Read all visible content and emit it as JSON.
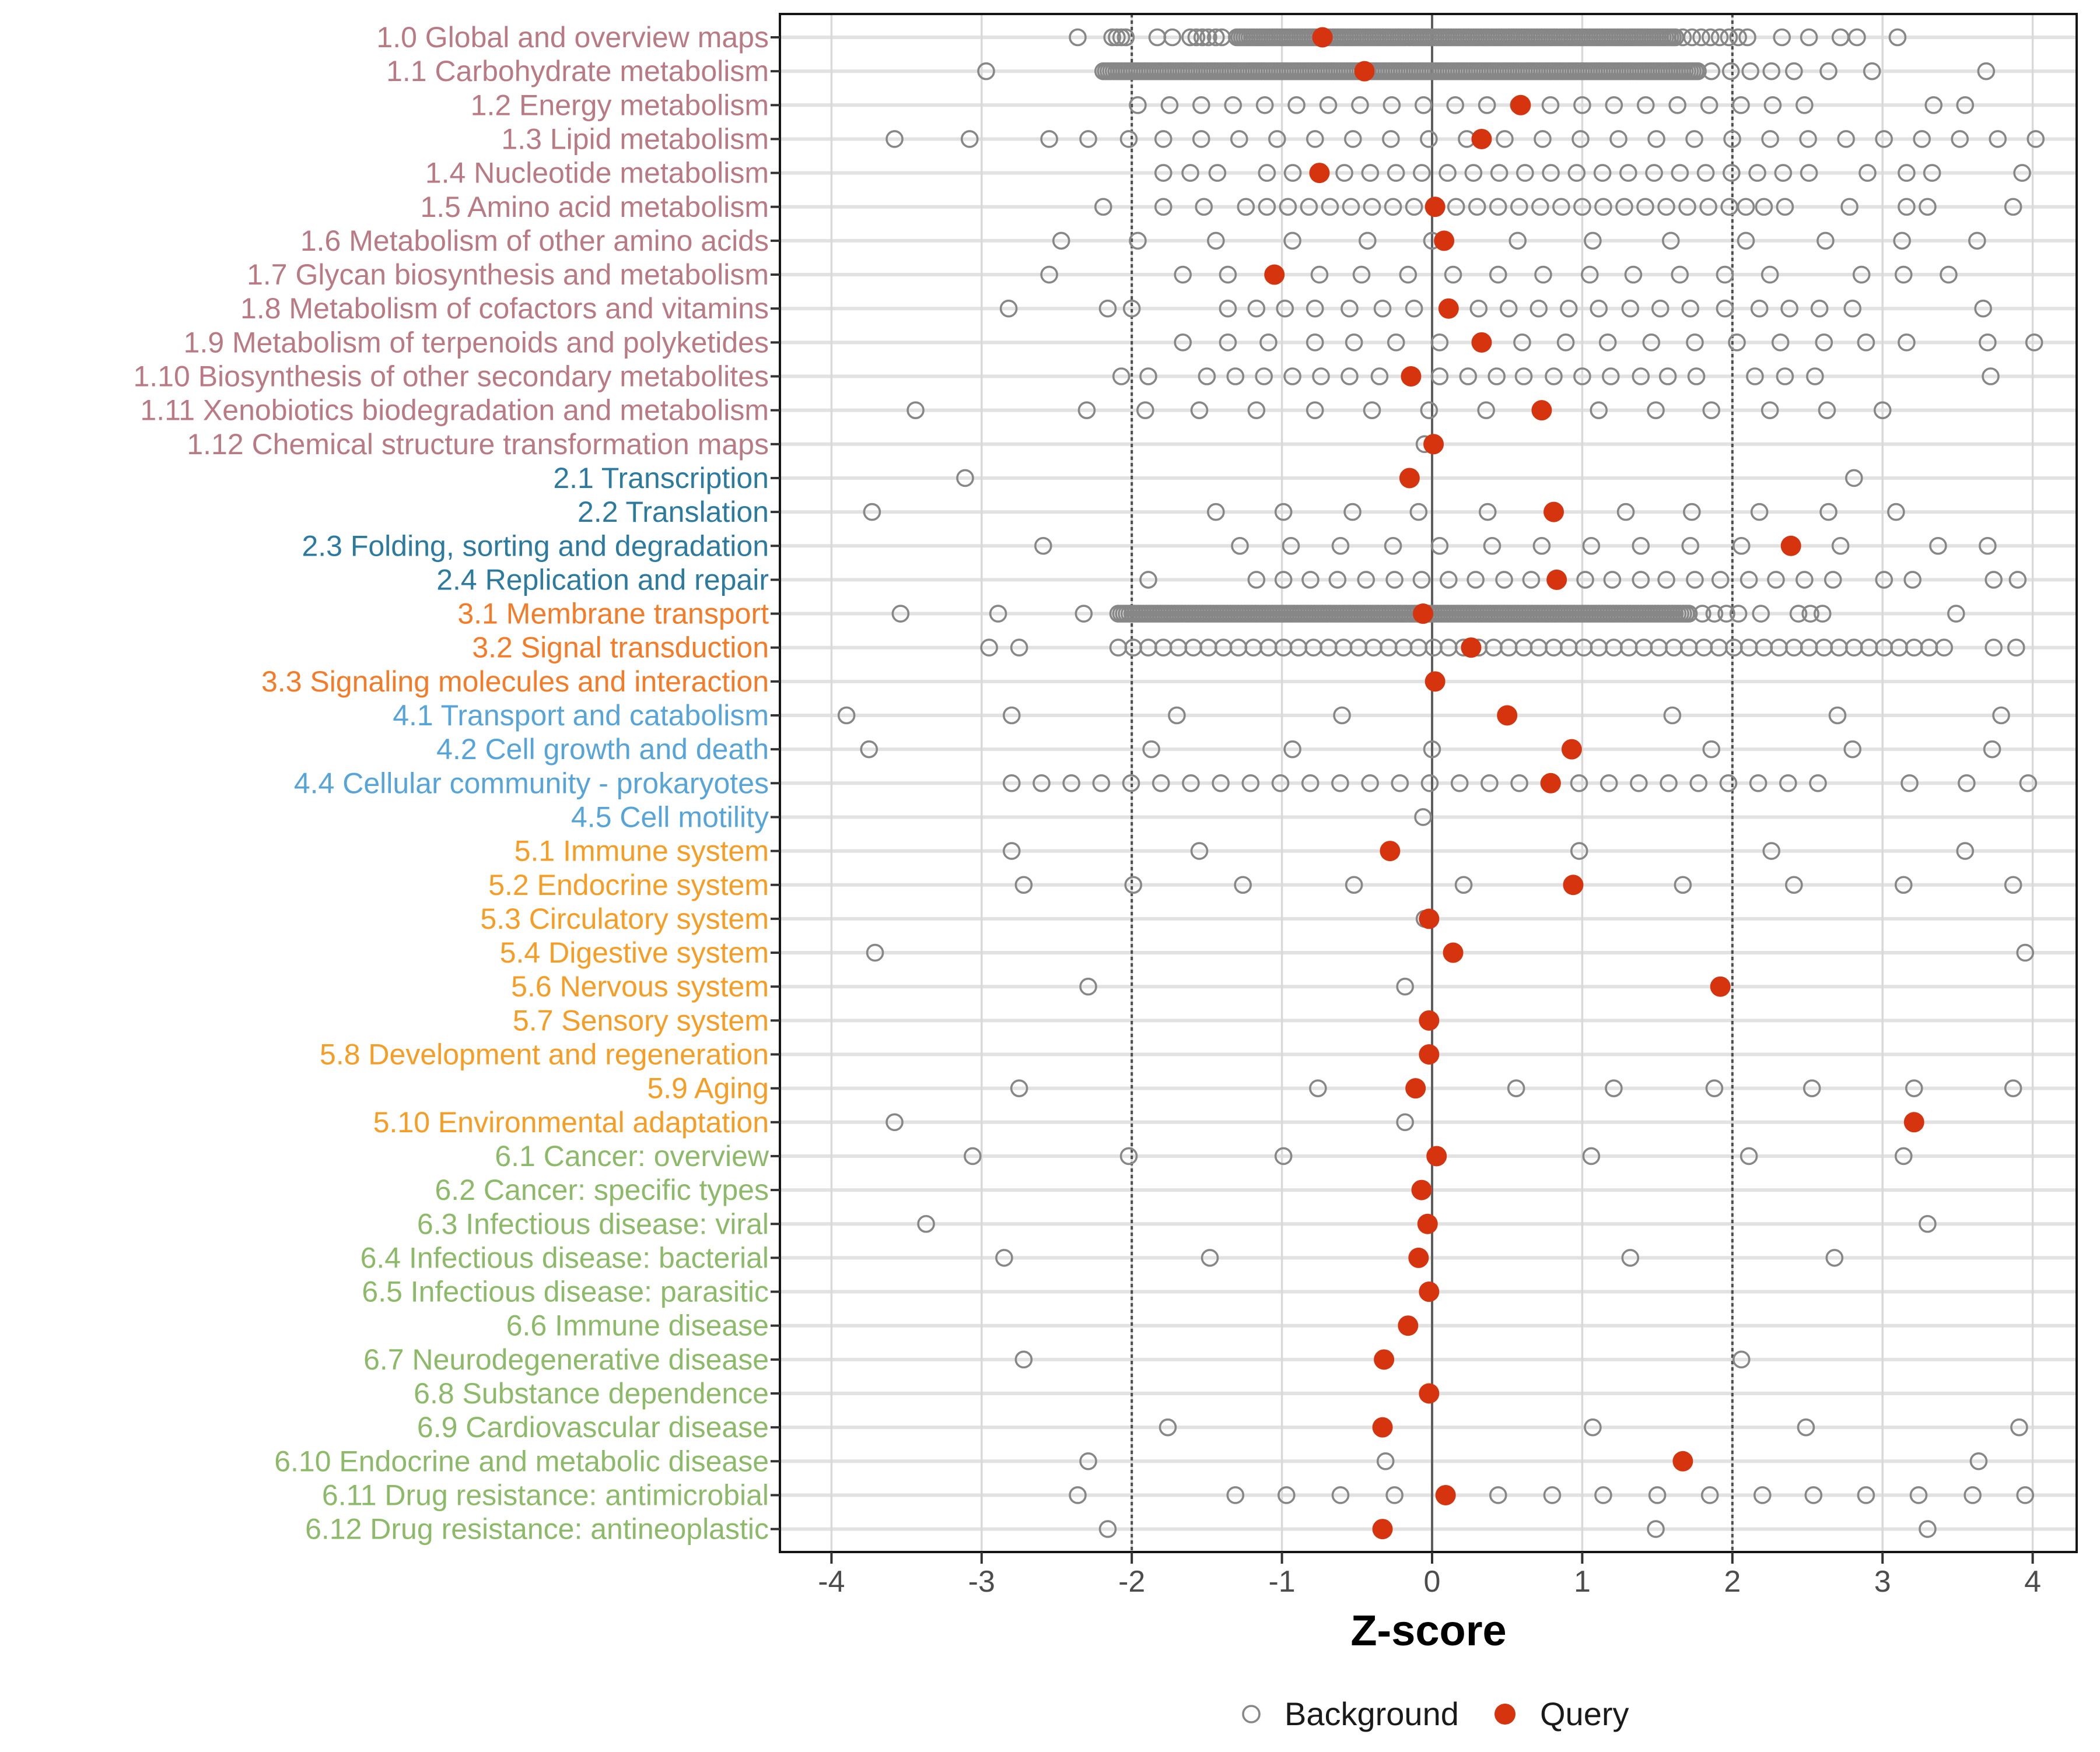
{
  "chart_data": {
    "type": "scatter",
    "title": "",
    "xlabel": "Z-score",
    "ylabel": "",
    "xlim": [
      -4.34,
      4.29
    ],
    "x_ticks": [
      -4,
      -3,
      -2,
      -1,
      0,
      1,
      2,
      3,
      4
    ],
    "x_tick_labels": [
      "-4",
      "-3",
      "-2",
      "-1",
      "0",
      "1",
      "2",
      "3",
      "4"
    ],
    "grid": true,
    "reference_lines": {
      "solid": [
        0
      ],
      "dotted": [
        -2,
        2
      ]
    },
    "legend_position": "bottom",
    "legend": [
      {
        "label": "Background",
        "marker": "open-circle",
        "color": "#878787"
      },
      {
        "label": "Query",
        "marker": "filled-circle",
        "color": "#d5340e"
      }
    ],
    "group_colors": {
      "g1": "#b97a84",
      "g2": "#2d7a9f",
      "g3": "#f47b27",
      "g4": "#57a5d8",
      "g5": "#f59d24",
      "g6": "#8cba69"
    },
    "rows": [
      {
        "label": "1.0 Global and overview maps",
        "group": "g1",
        "query": -0.73,
        "bg": [
          -2.36,
          -2.13,
          -2.1,
          -2.07,
          -2.04,
          -1.83,
          -1.73,
          -1.61,
          -1.57,
          -1.53,
          -1.49,
          -1.44,
          -1.4,
          2.33,
          2.51,
          2.72,
          2.83,
          3.1
        ],
        "bg_bands": [
          [
            -1.3,
            1.62,
            175
          ],
          [
            1.67,
            2.1,
            8
          ]
        ]
      },
      {
        "label": "1.1 Carbohydrate metabolism",
        "group": "g1",
        "query": -0.45,
        "bg": [
          -2.97,
          1.86,
          1.99,
          2.12,
          2.26,
          2.41,
          2.64,
          2.93,
          3.69
        ],
        "bg_bands": [
          [
            -2.19,
            1.77,
            230
          ]
        ]
      },
      {
        "label": "1.2 Energy metabolism",
        "group": "g1",
        "query": 0.59,
        "bg": [
          3.34,
          3.55
        ],
        "bg_bands": [
          [
            -1.96,
            2.48,
            22
          ]
        ]
      },
      {
        "label": "1.3 Lipid metabolism",
        "group": "g1",
        "query": 0.33,
        "bg": [
          -3.58,
          -3.08,
          -2.55,
          -2.29,
          -2.02
        ],
        "bg_bands": [
          [
            -1.79,
            4.02,
            24
          ]
        ]
      },
      {
        "label": "1.4 Nucleotide metabolism",
        "group": "g1",
        "query": -0.75,
        "bg": [
          -1.79,
          -1.61,
          -1.43,
          2.9,
          3.16,
          3.33,
          3.93
        ],
        "bg_bands": [
          [
            -1.1,
            2.51,
            22
          ]
        ]
      },
      {
        "label": "1.5 Amino acid metabolism",
        "group": "g1",
        "query": 0.02,
        "bg": [
          -2.19,
          -1.79,
          -1.52,
          2.09,
          2.21,
          2.35,
          2.78,
          3.16,
          3.3,
          3.87
        ],
        "bg_bands": [
          [
            -1.24,
            1.98,
            24
          ]
        ]
      },
      {
        "label": "1.6 Metabolism of other amino acids",
        "group": "g1",
        "query": 0.08,
        "bg": [
          -2.47,
          -1.96,
          -1.44,
          -0.93,
          -0.43,
          0.0,
          0.57,
          1.07,
          1.59,
          2.09,
          2.62,
          3.13,
          3.63
        ],
        "bg_bands": []
      },
      {
        "label": "1.7 Glycan biosynthesis and metabolism",
        "group": "g1",
        "query": -1.05,
        "bg": [
          -2.55,
          -1.66,
          -1.36,
          -0.75,
          -0.47,
          -0.16,
          0.14,
          0.44,
          0.74,
          1.05,
          1.34,
          1.65,
          1.95,
          2.25,
          2.86,
          3.14,
          3.44
        ],
        "bg_bands": []
      },
      {
        "label": "1.8 Metabolism of cofactors and vitamins",
        "group": "g1",
        "query": 0.11,
        "bg": [
          -2.82,
          -2.16,
          -2.0,
          -1.36,
          -1.17,
          -0.98,
          -0.78,
          -0.55,
          -0.33,
          -0.12,
          0.31,
          0.51,
          0.71,
          0.91,
          1.11,
          1.32,
          1.52,
          1.72,
          1.95,
          2.18,
          2.38,
          2.58,
          2.8,
          3.67
        ],
        "bg_bands": []
      },
      {
        "label": "1.9 Metabolism of terpenoids and polyketides",
        "group": "g1",
        "query": 0.33,
        "bg": [
          -1.66,
          -1.36,
          -1.09,
          -0.78,
          -0.52,
          -0.24,
          0.05,
          0.6,
          0.89,
          1.17,
          1.46,
          1.75,
          2.03,
          2.32,
          2.61,
          2.89,
          3.16,
          3.7,
          4.01
        ],
        "bg_bands": []
      },
      {
        "label": "1.10 Biosynthesis of other secondary metabolites",
        "group": "g1",
        "query": -0.14,
        "bg": [
          -2.07,
          -1.89,
          -1.5,
          -1.31,
          -1.12,
          -0.93,
          -0.74,
          -0.55,
          -0.35,
          0.05,
          0.24,
          0.43,
          0.61,
          0.81,
          1.0,
          1.19,
          1.39,
          1.57,
          1.76,
          2.15,
          2.35,
          2.55,
          3.72
        ],
        "bg_bands": []
      },
      {
        "label": "1.11 Xenobiotics biodegradation and metabolism",
        "group": "g1",
        "query": 0.73,
        "bg": [
          -3.44,
          -2.3,
          -1.91,
          -1.55,
          -1.17,
          -0.78,
          -0.4,
          -0.02,
          0.36,
          1.11,
          1.49,
          1.86,
          2.25,
          2.63,
          3.0
        ],
        "bg_bands": []
      },
      {
        "label": "1.12 Chemical structure transformation maps",
        "group": "g1",
        "query": 0.01,
        "bg": [
          -0.05
        ],
        "bg_bands": []
      },
      {
        "label": "2.1 Transcription",
        "group": "g2",
        "query": -0.15,
        "bg": [
          -3.11,
          2.81
        ],
        "bg_bands": []
      },
      {
        "label": "2.2 Translation",
        "group": "g2",
        "query": 0.81,
        "bg": [
          -3.73,
          -1.44,
          -0.99,
          -0.53,
          -0.09,
          0.37,
          1.29,
          1.73,
          2.18,
          2.64,
          3.09
        ],
        "bg_bands": []
      },
      {
        "label": "2.3 Folding, sorting and degradation",
        "group": "g2",
        "query": 2.39,
        "bg": [
          -2.59,
          -1.28,
          -0.94,
          -0.61,
          -0.26,
          0.05,
          0.4,
          0.73,
          1.06,
          1.39,
          1.72,
          2.06,
          2.72,
          3.37,
          3.7
        ],
        "bg_bands": []
      },
      {
        "label": "2.4 Replication and repair",
        "group": "g2",
        "query": 0.83,
        "bg": [
          -1.89,
          -1.17,
          -0.99,
          -0.81,
          -0.63,
          -0.44,
          -0.25,
          -0.07,
          0.11,
          0.29,
          0.48,
          0.66,
          1.02,
          1.2,
          1.39,
          1.56,
          1.75,
          1.92,
          2.11,
          2.29,
          2.48,
          2.67,
          3.01,
          3.2,
          3.74,
          3.9
        ],
        "bg_bands": []
      },
      {
        "label": "3.1 Membrane transport",
        "group": "g3",
        "query": -0.06,
        "bg": [
          -3.54,
          -2.89,
          -2.32,
          1.8,
          1.88,
          1.96,
          2.04,
          2.19,
          2.44,
          2.52,
          2.6,
          3.49
        ],
        "bg_bands": [
          [
            -2.09,
            1.71,
            205
          ]
        ]
      },
      {
        "label": "3.2 Signal transduction",
        "group": "g3",
        "query": 0.26,
        "bg": [
          -2.95,
          -2.75,
          3.74,
          3.89
        ],
        "bg_bands": [
          [
            -2.09,
            3.41,
            56
          ]
        ]
      },
      {
        "label": "3.3 Signaling molecules and interaction",
        "group": "g3",
        "query": 0.02,
        "bg": [],
        "bg_bands": []
      },
      {
        "label": "4.1 Transport and catabolism",
        "group": "g4",
        "query": 0.5,
        "bg": [
          -3.9,
          -2.8,
          -1.7,
          -0.6,
          1.6,
          2.7,
          3.79
        ],
        "bg_bands": []
      },
      {
        "label": "4.2 Cell growth and death",
        "group": "g4",
        "query": 0.93,
        "bg": [
          -3.75,
          -1.87,
          -0.93,
          0.0,
          1.86,
          2.8,
          3.73
        ],
        "bg_bands": []
      },
      {
        "label": "4.4 Cellular community - prokaryotes",
        "group": "g4",
        "query": 0.79,
        "bg": [
          3.18,
          3.56,
          3.97
        ],
        "bg_bands": [
          [
            -2.8,
            2.57,
            28
          ]
        ]
      },
      {
        "label": "4.5 Cell motility",
        "group": "g4",
        "query": null,
        "bg": [
          -0.06
        ],
        "bg_bands": []
      },
      {
        "label": "5.1 Immune system",
        "group": "g5",
        "query": -0.28,
        "bg": [
          -2.8,
          -1.55,
          0.98,
          2.26,
          3.55
        ],
        "bg_bands": []
      },
      {
        "label": "5.2 Endocrine system",
        "group": "g5",
        "query": 0.94,
        "bg": [
          -2.72,
          -1.99,
          -1.26,
          -0.52,
          0.21,
          1.67,
          2.41,
          3.14,
          3.87
        ],
        "bg_bands": []
      },
      {
        "label": "5.3 Circulatory system",
        "group": "g5",
        "query": -0.02,
        "bg": [
          -0.05
        ],
        "bg_bands": []
      },
      {
        "label": "5.4 Digestive system",
        "group": "g5",
        "query": 0.14,
        "bg": [
          -3.71,
          3.95
        ],
        "bg_bands": []
      },
      {
        "label": "5.6 Nervous system",
        "group": "g5",
        "query": 1.92,
        "bg": [
          -2.29,
          -0.18
        ],
        "bg_bands": []
      },
      {
        "label": "5.7 Sensory system",
        "group": "g5",
        "query": -0.02,
        "bg": [],
        "bg_bands": []
      },
      {
        "label": "5.8 Development and regeneration",
        "group": "g5",
        "query": -0.02,
        "bg": [],
        "bg_bands": []
      },
      {
        "label": "5.9 Aging",
        "group": "g5",
        "query": -0.11,
        "bg": [
          -2.75,
          -0.76,
          0.56,
          1.21,
          1.88,
          2.53,
          3.21,
          3.87
        ],
        "bg_bands": []
      },
      {
        "label": "5.10 Environmental adaptation",
        "group": "g5",
        "query": 3.21,
        "bg": [
          -3.58,
          -0.18
        ],
        "bg_bands": []
      },
      {
        "label": "6.1 Cancer: overview",
        "group": "g6",
        "query": 0.03,
        "bg": [
          -3.06,
          -2.02,
          -0.99,
          1.06,
          2.11,
          3.14
        ],
        "bg_bands": []
      },
      {
        "label": "6.2 Cancer: specific types",
        "group": "g6",
        "query": -0.07,
        "bg": [],
        "bg_bands": []
      },
      {
        "label": "6.3 Infectious disease: viral",
        "group": "g6",
        "query": -0.03,
        "bg": [
          -3.37,
          3.3
        ],
        "bg_bands": []
      },
      {
        "label": "6.4 Infectious disease: bacterial",
        "group": "g6",
        "query": -0.09,
        "bg": [
          -2.85,
          -1.48,
          1.32,
          2.68
        ],
        "bg_bands": []
      },
      {
        "label": "6.5 Infectious disease: parasitic",
        "group": "g6",
        "query": -0.02,
        "bg": [],
        "bg_bands": []
      },
      {
        "label": "6.6 Immune disease",
        "group": "g6",
        "query": -0.16,
        "bg": [],
        "bg_bands": []
      },
      {
        "label": "6.7 Neurodegenerative disease",
        "group": "g6",
        "query": -0.32,
        "bg": [
          -2.72,
          2.06
        ],
        "bg_bands": []
      },
      {
        "label": "6.8 Substance dependence",
        "group": "g6",
        "query": -0.02,
        "bg": [],
        "bg_bands": []
      },
      {
        "label": "6.9 Cardiovascular disease",
        "group": "g6",
        "query": -0.33,
        "bg": [
          -1.76,
          1.07,
          2.49,
          3.91
        ],
        "bg_bands": []
      },
      {
        "label": "6.10 Endocrine and metabolic disease",
        "group": "g6",
        "query": 1.67,
        "bg": [
          -2.29,
          -0.31,
          3.64
        ],
        "bg_bands": []
      },
      {
        "label": "6.11 Drug resistance: antimicrobial",
        "group": "g6",
        "query": 0.09,
        "bg": [
          -2.36,
          -1.31,
          -0.97,
          -0.61,
          -0.25,
          0.44,
          0.8,
          1.14,
          1.5,
          1.85,
          2.2,
          2.54,
          2.89,
          3.24,
          3.6,
          3.95
        ],
        "bg_bands": []
      },
      {
        "label": "6.12 Drug resistance: antineoplastic",
        "group": "g6",
        "query": -0.33,
        "bg": [
          -2.16,
          1.49,
          3.3
        ],
        "bg_bands": []
      }
    ]
  },
  "colors": {
    "background_point_stroke": "#878787",
    "query_point_fill": "#d5340e",
    "row_band": "#e2e2e2",
    "v_gridline": "#d9d9d9",
    "zero_line": "#5e5e5e",
    "dotted_line": "#4d4d4d",
    "panel_border": "#151515",
    "tick": "#333333",
    "tick_label": "#4d4d4d",
    "axis_title": "#000000",
    "legend_text": "#1a1a1a",
    "panel_background": "#ffffff"
  }
}
